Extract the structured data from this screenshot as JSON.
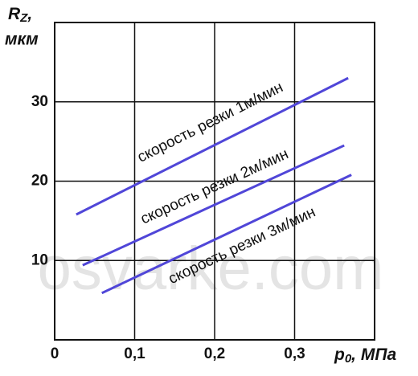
{
  "chart_data": {
    "type": "line",
    "ylabel": {
      "symbol": "R",
      "subscript": "Z",
      "rest": ",",
      "unit": "мкм"
    },
    "xlabel": {
      "symbol": "p",
      "subscript": "0",
      "rest": ", МПа"
    },
    "watermark": "osvarke.com",
    "xlim": [
      0,
      0.4
    ],
    "ylim": [
      0,
      40
    ],
    "xticks": [
      {
        "value": 0,
        "label": "0"
      },
      {
        "value": 0.1,
        "label": "0,1"
      },
      {
        "value": 0.2,
        "label": "0,2"
      },
      {
        "value": 0.3,
        "label": "0,3"
      }
    ],
    "yticks": [
      10,
      20,
      30
    ],
    "grid": true,
    "series": [
      {
        "name": "скорость резки 1м/мин",
        "color": "#5046d8",
        "x": [
          0.027,
          0.367
        ],
        "values": [
          15.8,
          33.0
        ]
      },
      {
        "name": "скорость резки 2м/мин",
        "color": "#5046d8",
        "x": [
          0.035,
          0.362
        ],
        "values": [
          9.4,
          24.5
        ]
      },
      {
        "name": "скорость резки 3м/мин",
        "color": "#5046d8",
        "x": [
          0.059,
          0.371
        ],
        "values": [
          5.9,
          20.8
        ]
      }
    ]
  }
}
